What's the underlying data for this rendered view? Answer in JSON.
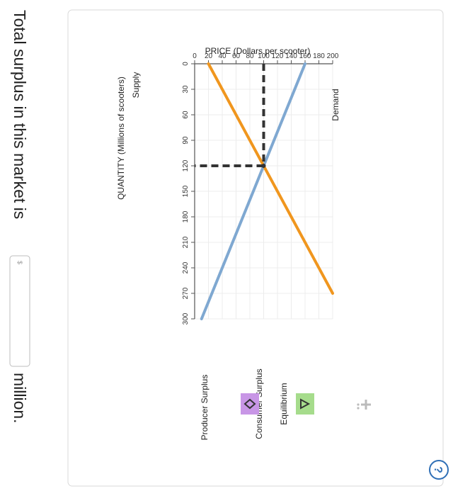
{
  "question": {
    "before": "Total surplus in this market is",
    "input_placeholder": "$",
    "after": "million."
  },
  "help_symbol": "?",
  "chart_data": {
    "type": "line",
    "xlabel": "QUANTITY (Millions of scooters)",
    "ylabel": "PRICE (Dollars per scooter)",
    "xlim": [
      0,
      300
    ],
    "ylim": [
      0,
      200
    ],
    "x_ticks": [
      0,
      30,
      60,
      90,
      120,
      150,
      180,
      210,
      240,
      270,
      300
    ],
    "y_ticks": [
      0,
      20,
      40,
      60,
      80,
      100,
      120,
      140,
      160,
      180,
      200
    ],
    "grid": true,
    "series": [
      {
        "name": "Demand",
        "color": "#7fa8d1",
        "points": [
          [
            0,
            160
          ],
          [
            300,
            10
          ]
        ]
      },
      {
        "name": "Supply",
        "color": "#f0961e",
        "points": [
          [
            0,
            20
          ],
          [
            270,
            200
          ]
        ]
      }
    ],
    "equilibrium": {
      "quantity": 120,
      "price": 100
    },
    "legend": {
      "placement": "right",
      "items": [
        {
          "label": "Equilibrium",
          "symbol": "triangle",
          "color": "#a6dc8c"
        },
        {
          "label": "Consumer Surplus",
          "symbol": "triangle",
          "color": "#a6dc8c"
        },
        {
          "label": "Producer Surplus",
          "symbol": "diamond",
          "color": "#c896e6"
        }
      ]
    }
  }
}
